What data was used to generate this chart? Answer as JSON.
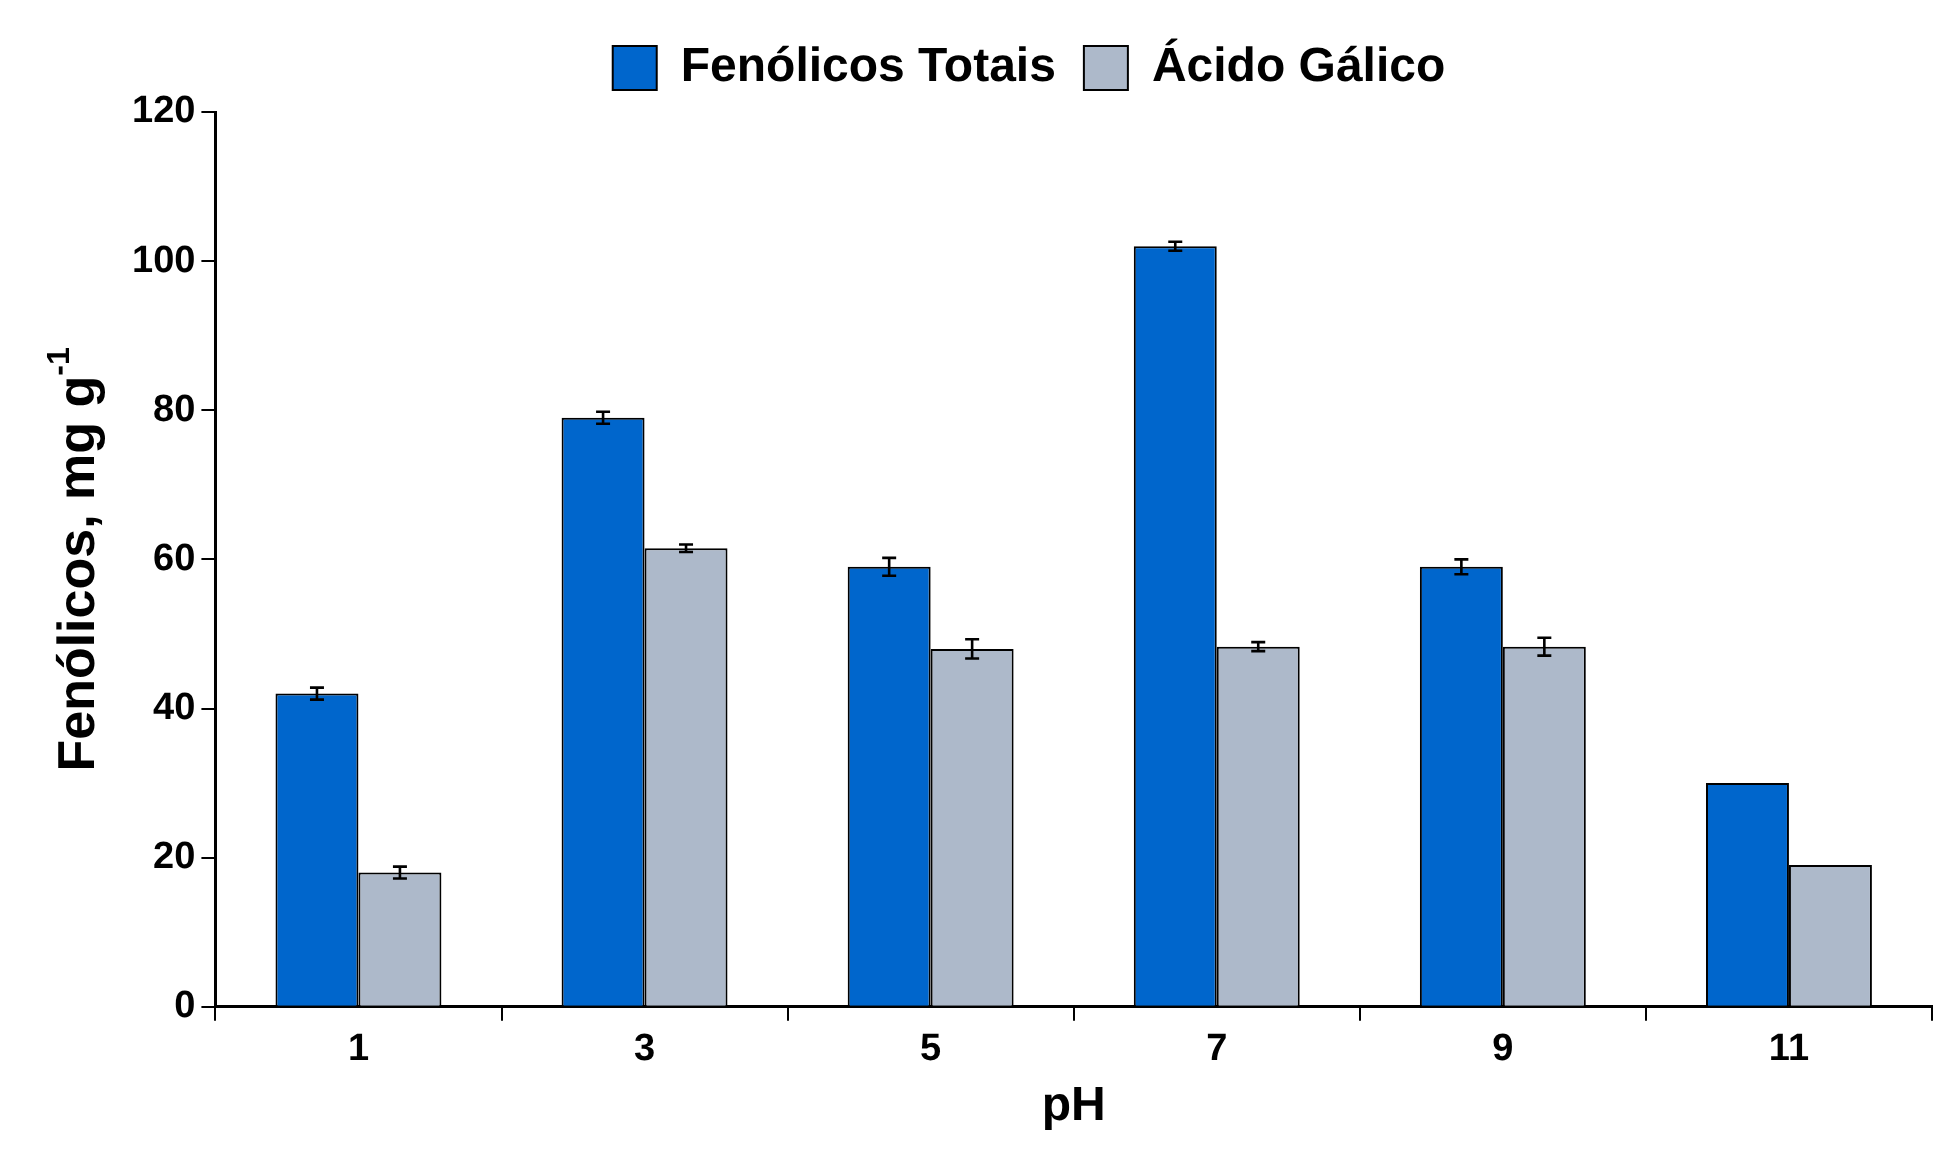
{
  "chart_data": {
    "type": "bar",
    "xlabel": "pH",
    "ylabel": "Fenólicos, mg g$^{-1}$",
    "categories": [
      "1",
      "3",
      "5",
      "7",
      "9",
      "11"
    ],
    "series": [
      {
        "name": "Fenólicos Totais",
        "color": "#0066cc",
        "values": [
          42,
          79,
          59,
          102,
          59,
          30
        ],
        "errors": [
          0.8,
          0.8,
          1.2,
          0.6,
          1.0,
          null
        ]
      },
      {
        "name": "Ácido Gálico",
        "color": "#adb9ca",
        "values": [
          18,
          61.5,
          48,
          48.3,
          48.3,
          19
        ],
        "errors": [
          0.8,
          0.5,
          1.3,
          0.6,
          1.2,
          null
        ]
      }
    ],
    "ylim": [
      0,
      120
    ],
    "yticks": [
      0,
      20,
      40,
      60,
      80,
      100,
      120
    ],
    "grid": false,
    "legend": "top"
  }
}
